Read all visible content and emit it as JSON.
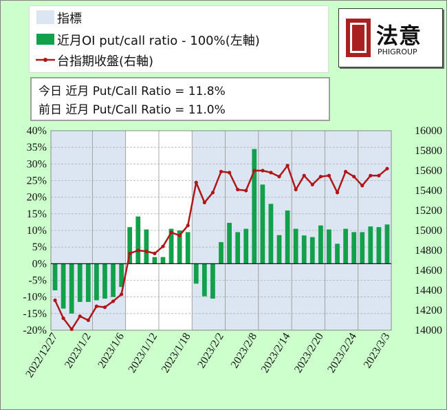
{
  "legend": {
    "shade_label": "指標",
    "bar_label": "近月OI put/call ratio - 100%(左軸)",
    "line_label": "台指期收盤(右軸)"
  },
  "stats": {
    "today": "今日 近月 Put/Call Ratio = 11.8%",
    "prev": "前日 近月 Put/Call Ratio = 11.0%"
  },
  "logo": {
    "cn": "法意",
    "en": "PHIGROUP"
  },
  "colors": {
    "bar": "#12a04a",
    "line": "#b01518",
    "shade": "#dce6f2",
    "background": "#ccffcc"
  },
  "chart_data": {
    "type": "bar+line",
    "left_axis": {
      "min": -20,
      "max": 40,
      "step": 5,
      "ticks": [
        "-20%",
        "-15%",
        "-10%",
        "-5%",
        "0%",
        "5%",
        "10%",
        "15%",
        "20%",
        "25%",
        "30%",
        "35%",
        "40%"
      ]
    },
    "right_axis": {
      "min": 14000,
      "max": 16000,
      "step": 200,
      "ticks": [
        "14000",
        "14200",
        "14400",
        "14600",
        "14800",
        "15000",
        "15200",
        "15400",
        "15600",
        "15800",
        "16000"
      ]
    },
    "x_tick_labels": [
      "2022/12/27",
      "2023/1/2",
      "2023/1/6",
      "2023/1/12",
      "2023/1/18",
      "2023/2/2",
      "2023/2/8",
      "2023/2/14",
      "2023/2/20",
      "2023/2/24",
      "2023/3/3"
    ],
    "x_tick_index": [
      0,
      4,
      8,
      12,
      16,
      20,
      24,
      28,
      32,
      36,
      40
    ],
    "shade_regions": [
      [
        0,
        8
      ],
      [
        17,
        19
      ],
      [
        20,
        40
      ]
    ],
    "series": [
      {
        "kind": "bar",
        "axis": "left",
        "values": [
          -8.0,
          -13.5,
          -15.0,
          -11.5,
          -11.5,
          -11.0,
          -10.5,
          -10.0,
          -7.0,
          11.0,
          14.2,
          10.3,
          2.0,
          2.0,
          10.5,
          10.0,
          9.5,
          -6.0,
          -9.8,
          -10.5,
          6.5,
          12.3,
          9.5,
          10.5,
          34.5,
          23.8,
          18.0,
          8.6,
          16.0,
          10.5,
          8.5,
          8.0,
          11.5,
          10.3,
          6.0,
          10.5,
          9.5,
          9.5,
          11.2,
          11.0,
          11.8
        ]
      },
      {
        "kind": "line",
        "axis": "right",
        "values": [
          14300,
          14120,
          14010,
          14140,
          14100,
          14240,
          14230,
          14290,
          14360,
          14770,
          14800,
          14790,
          14770,
          14840,
          14980,
          14950,
          15050,
          15480,
          15280,
          15380,
          15590,
          15580,
          15410,
          15400,
          15600,
          15600,
          15580,
          15540,
          15650,
          15410,
          15550,
          15460,
          15540,
          15550,
          15380,
          15590,
          15540,
          15450,
          15550,
          15550,
          15620
        ]
      }
    ]
  }
}
